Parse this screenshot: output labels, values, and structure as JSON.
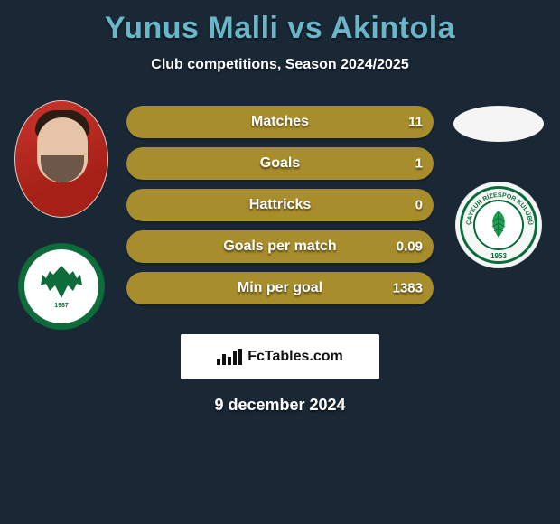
{
  "title_color": "#6bb5c9",
  "header": {
    "player1": "Yunus Malli",
    "vs": "vs",
    "player2": "Akintola",
    "subtitle": "Club competitions, Season 2024/2025"
  },
  "stats": {
    "bar_fill_color": "#a88d2c",
    "bar_track_color": "#1f2f3f",
    "rows": [
      {
        "label": "Matches",
        "left": "",
        "right": "11",
        "left_pct": 0,
        "right_pct": 100
      },
      {
        "label": "Goals",
        "left": "",
        "right": "1",
        "left_pct": 0,
        "right_pct": 100
      },
      {
        "label": "Hattricks",
        "left": "",
        "right": "0",
        "left_pct": 0,
        "right_pct": 100
      },
      {
        "label": "Goals per match",
        "left": "",
        "right": "0.09",
        "left_pct": 0,
        "right_pct": 100
      },
      {
        "label": "Min per goal",
        "left": "",
        "right": "1383",
        "left_pct": 0,
        "right_pct": 100
      }
    ]
  },
  "clubs": {
    "left": {
      "name": "Konyaspor",
      "primary": "#0e6b3a",
      "year": "1987"
    },
    "right": {
      "name": "Çaykur Rizespor Kulübü",
      "primary": "#0a6b3c",
      "year": "1953"
    }
  },
  "footer": {
    "brand": "FcTables.com",
    "date": "9 december 2024"
  },
  "background_color": "#1a2836"
}
